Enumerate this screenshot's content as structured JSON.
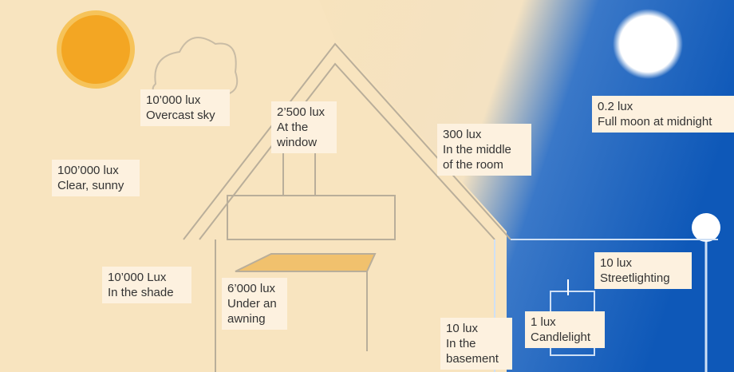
{
  "labels": [
    {
      "lux": "100’000 lux",
      "lines": [
        "Clear, sunny"
      ]
    },
    {
      "lux": "10’000 lux",
      "lines": [
        "Overcast sky"
      ]
    },
    {
      "lux": "2’500 lux",
      "lines": [
        "At the",
        "window"
      ]
    },
    {
      "lux": "300 lux",
      "lines": [
        "In the middle",
        "of the room"
      ]
    },
    {
      "lux": "0.2 lux",
      "lines": [
        "Full moon at midnight"
      ]
    },
    {
      "lux": "10’000 Lux",
      "lines": [
        "In the shade"
      ]
    },
    {
      "lux": "6’000 lux",
      "lines": [
        "Under an",
        "awning"
      ]
    },
    {
      "lux": "10 lux",
      "lines": [
        "Streetlighting"
      ]
    },
    {
      "lux": "1 lux",
      "lines": [
        "Candlelight"
      ]
    },
    {
      "lux": "10 lux",
      "lines": [
        "In the",
        "basement"
      ]
    }
  ]
}
